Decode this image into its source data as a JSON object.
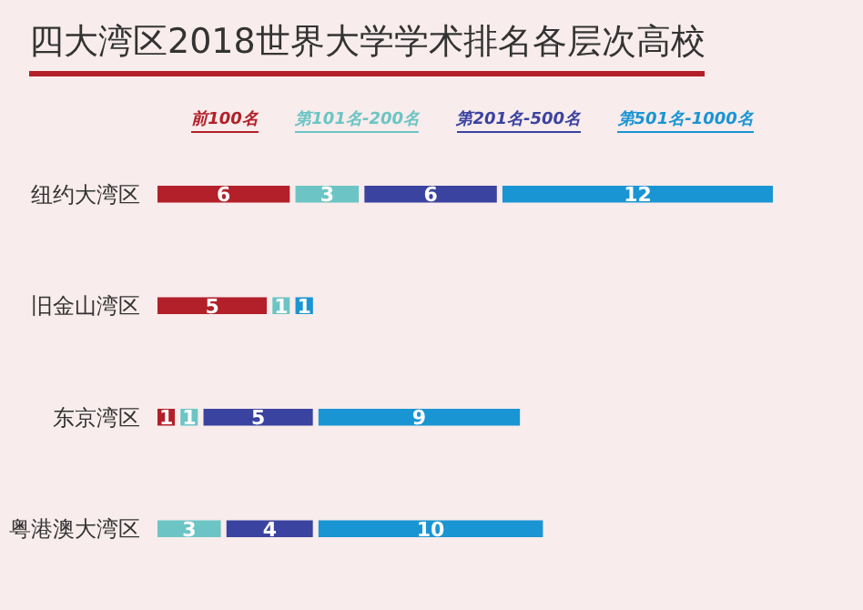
{
  "chart_data": {
    "type": "bar",
    "orientation": "horizontal",
    "stacked": true,
    "title": "四大湾区2018世界大学学术排名各层次高校",
    "categories": [
      "纽约大湾区",
      "旧金山湾区",
      "东京湾区",
      "粤港澳大湾区"
    ],
    "series": [
      {
        "name": "前100名",
        "color": "#b3202a",
        "values": [
          6,
          5,
          1,
          null
        ]
      },
      {
        "name": "第101名-200名",
        "color": "#6cc5c4",
        "values": [
          3,
          1,
          1,
          3
        ]
      },
      {
        "name": "第201名-500名",
        "color": "#3b43a0",
        "values": [
          6,
          null,
          5,
          4
        ]
      },
      {
        "name": "第501名-1000名",
        "color": "#1a95d3",
        "values": [
          12,
          1,
          9,
          10
        ]
      }
    ],
    "data_labels": true,
    "legend": "top",
    "grid": false
  }
}
